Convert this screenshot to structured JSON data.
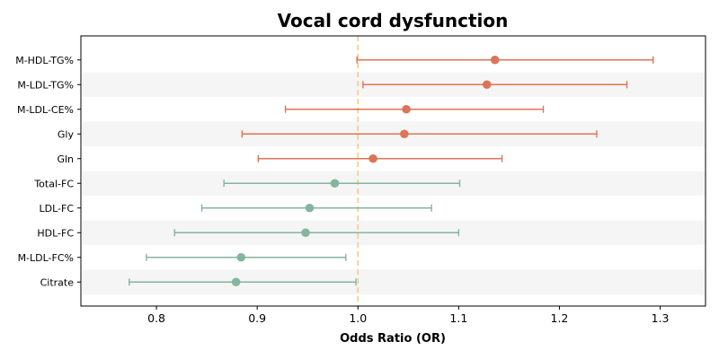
{
  "chart_data": {
    "type": "forest",
    "title": "Vocal cord dysfunction",
    "xlabel": "Odds Ratio (OR)",
    "ylabel": "",
    "xlim": [
      0.725,
      1.345
    ],
    "xticks": [
      0.8,
      0.9,
      1.0,
      1.1,
      1.2,
      1.3
    ],
    "xtick_labels": [
      "0.8",
      "0.9",
      "1.0",
      "1.1",
      "1.2",
      "1.3"
    ],
    "reference_line": 1.0,
    "reference_color": "#f5c98a",
    "grid": false,
    "colors": {
      "positive": "#dd7457",
      "negative": "#84b59d",
      "band": "#f5f5f5"
    },
    "rows": [
      {
        "label": "M-HDL-TG%",
        "or": 1.136,
        "lo": 0.999,
        "hi": 1.293,
        "group": "positive"
      },
      {
        "label": "M-LDL-TG%",
        "or": 1.128,
        "lo": 1.005,
        "hi": 1.267,
        "group": "positive"
      },
      {
        "label": "M-LDL-CE%",
        "or": 1.048,
        "lo": 0.928,
        "hi": 1.184,
        "group": "positive"
      },
      {
        "label": "Gly",
        "or": 1.046,
        "lo": 0.885,
        "hi": 1.237,
        "group": "positive"
      },
      {
        "label": "Gln",
        "or": 1.015,
        "lo": 0.901,
        "hi": 1.143,
        "group": "positive"
      },
      {
        "label": "Total-FC",
        "or": 0.977,
        "lo": 0.867,
        "hi": 1.101,
        "group": "negative"
      },
      {
        "label": "LDL-FC",
        "or": 0.952,
        "lo": 0.845,
        "hi": 1.073,
        "group": "negative"
      },
      {
        "label": "HDL-FC",
        "or": 0.948,
        "lo": 0.818,
        "hi": 1.1,
        "group": "negative"
      },
      {
        "label": "M-LDL-FC%",
        "or": 0.884,
        "lo": 0.79,
        "hi": 0.988,
        "group": "negative"
      },
      {
        "label": "Citrate",
        "or": 0.879,
        "lo": 0.773,
        "hi": 0.998,
        "group": "negative"
      }
    ]
  }
}
